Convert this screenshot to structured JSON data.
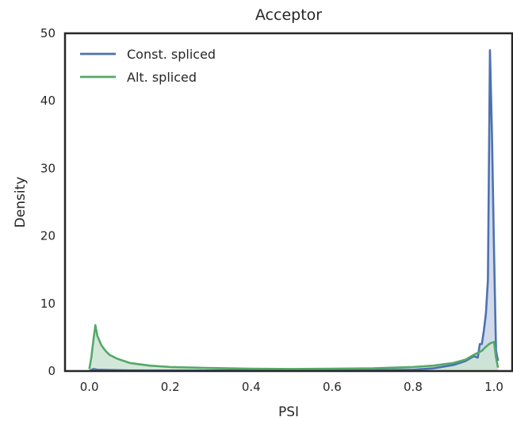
{
  "chart_data": {
    "type": "area",
    "title": "Acceptor",
    "xlabel": "PSI",
    "ylabel": "Density",
    "xlim": [
      -0.06,
      1.045
    ],
    "ylim": [
      0,
      50
    ],
    "xticks": [
      "0.0",
      "0.2",
      "0.4",
      "0.6",
      "0.8",
      "1.0"
    ],
    "yticks": [
      "0",
      "10",
      "20",
      "30",
      "40",
      "50"
    ],
    "grid": false,
    "legend": "top-left",
    "series": [
      {
        "name": "Const. spliced",
        "color": "#4c72b0",
        "fill": "#c9d4e6",
        "x": [
          0.0,
          0.005,
          0.01,
          0.02,
          0.05,
          0.1,
          0.2,
          0.4,
          0.6,
          0.8,
          0.85,
          0.9,
          0.93,
          0.95,
          0.96,
          0.965,
          0.97,
          0.975,
          0.98,
          0.985,
          0.99,
          0.995,
          1.0,
          1.005,
          1.01
        ],
        "y": [
          0.0,
          0.15,
          0.3,
          0.2,
          0.15,
          0.1,
          0.08,
          0.1,
          0.1,
          0.2,
          0.4,
          0.9,
          1.5,
          2.2,
          2.0,
          4.0,
          4.0,
          6.0,
          8.5,
          13.5,
          47.5,
          35.0,
          18.0,
          3.0,
          1.5
        ]
      },
      {
        "name": "Alt. spliced",
        "color": "#55a868",
        "fill": "#cde4d2",
        "x": [
          0.0,
          0.005,
          0.01,
          0.015,
          0.02,
          0.03,
          0.04,
          0.05,
          0.07,
          0.1,
          0.15,
          0.2,
          0.3,
          0.4,
          0.5,
          0.6,
          0.7,
          0.8,
          0.85,
          0.9,
          0.93,
          0.95,
          0.97,
          0.98,
          0.99,
          1.0,
          1.005,
          1.01
        ],
        "y": [
          0.3,
          2.0,
          4.5,
          6.8,
          5.2,
          3.8,
          3.0,
          2.4,
          1.8,
          1.2,
          0.8,
          0.6,
          0.45,
          0.35,
          0.3,
          0.35,
          0.4,
          0.6,
          0.8,
          1.2,
          1.7,
          2.4,
          3.0,
          3.6,
          4.1,
          4.3,
          2.0,
          0.5
        ]
      }
    ]
  }
}
